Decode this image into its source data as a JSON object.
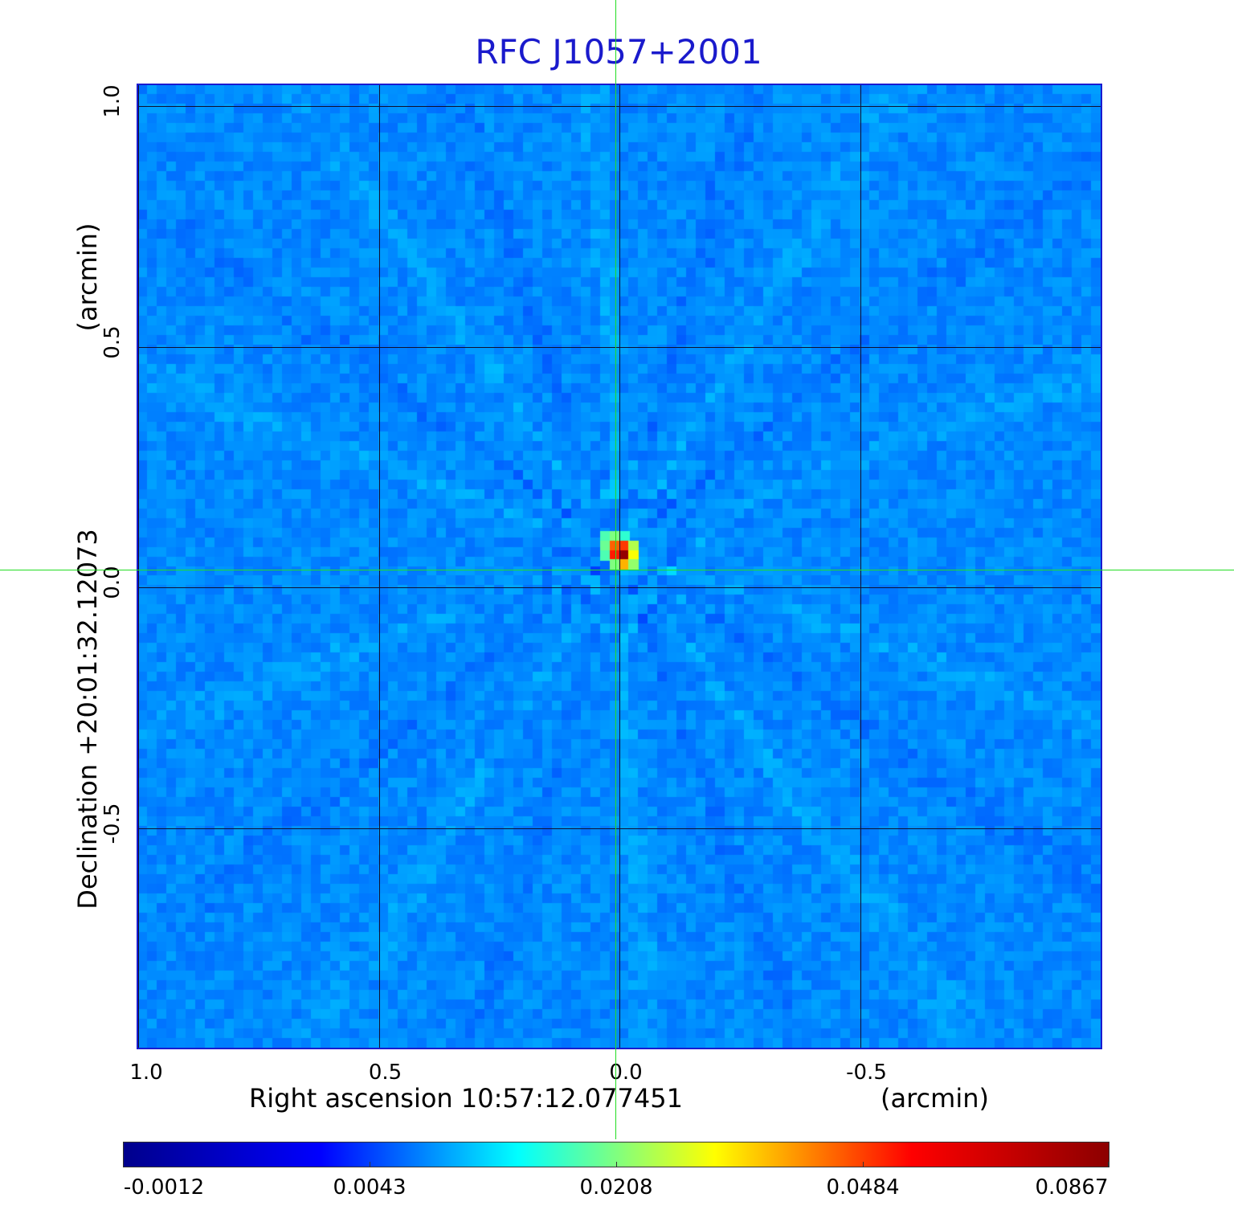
{
  "chart_data": {
    "type": "heatmap",
    "title": "RFC J1057+2001",
    "xlabel": "Right ascension  10:57:12.077451",
    "xunit": "(arcmin)",
    "ylabel": "Declination  +20:01:32.12073",
    "yunit": "(arcmin)",
    "xlim": [
      1.0,
      -1.0
    ],
    "ylim": [
      -1.0,
      1.0
    ],
    "x_ticks": [
      "1.0",
      "0.5",
      "0.0",
      "-0.5"
    ],
    "x_tick_values": [
      1.0,
      0.5,
      0.0,
      -0.5
    ],
    "y_ticks": [
      "1.0",
      "0.5",
      "0.0",
      "-0.5"
    ],
    "y_tick_values": [
      1.0,
      0.5,
      0.0,
      -0.5
    ],
    "grid": true,
    "source_peak": {
      "x": 0.0,
      "y": 0.0,
      "value": 0.0867
    },
    "colormap": "jet",
    "colorbar": {
      "labels": [
        "-0.0012",
        "0.0043",
        "0.0208",
        "0.0484",
        "0.0867"
      ],
      "values": [
        -0.0012,
        0.0043,
        0.0208,
        0.0484,
        0.0867
      ],
      "colors": [
        "#00008c",
        "#0000ff",
        "#00ffff",
        "#ffff00",
        "#ff0000",
        "#8c0000"
      ]
    },
    "crosshair_color": "#22dd22",
    "background_color": "#1a48ff"
  }
}
